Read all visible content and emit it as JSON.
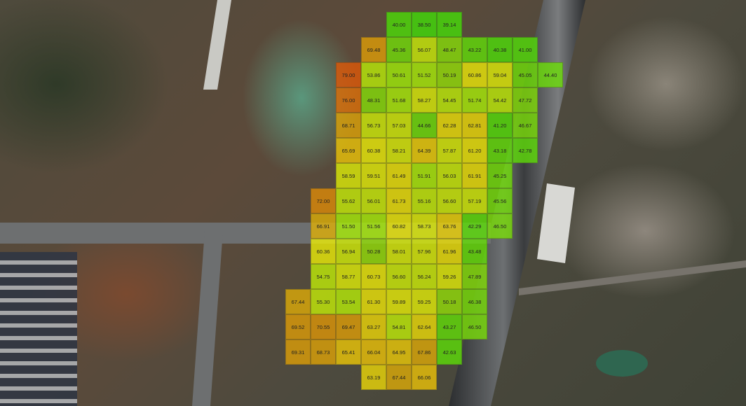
{
  "chart_data": {
    "type": "heatmap",
    "color_scale": {
      "low": "#3fd400",
      "mid": "#d8d800",
      "high": "#e06a10"
    },
    "opacity": 0.78,
    "rows": [
      {
        "start_col": 4,
        "values": [
          40.0,
          38.5,
          39.14
        ]
      },
      {
        "start_col": 3,
        "values": [
          69.48,
          45.36,
          56.07,
          48.47,
          43.22,
          40.38,
          41.0
        ]
      },
      {
        "start_col": 2,
        "values": [
          79.0,
          53.86,
          50.61,
          51.52,
          50.19,
          60.86,
          59.04,
          45.05,
          44.4
        ]
      },
      {
        "start_col": 2,
        "values": [
          76.0,
          48.31,
          51.68,
          58.27,
          54.45,
          51.74,
          54.42,
          47.72
        ]
      },
      {
        "start_col": 2,
        "values": [
          68.71,
          56.73,
          57.03,
          44.66,
          62.28,
          62.81,
          41.2,
          46.67
        ]
      },
      {
        "start_col": 2,
        "values": [
          65.69,
          60.38,
          58.21,
          64.39,
          57.87,
          61.2,
          43.18,
          42.78
        ]
      },
      {
        "start_col": 2,
        "values": [
          58.59,
          59.51,
          61.49,
          51.91,
          56.03,
          61.91,
          45.25
        ]
      },
      {
        "start_col": 1,
        "values": [
          72.0,
          55.62,
          56.01,
          61.73,
          55.16,
          56.6,
          57.19,
          45.56
        ]
      },
      {
        "start_col": 1,
        "values": [
          66.91,
          51.5,
          51.56,
          60.82,
          58.73,
          63.76,
          42.29,
          46.5
        ]
      },
      {
        "start_col": 1,
        "values": [
          60.36,
          56.94,
          50.28,
          58.01,
          57.96,
          61.96,
          43.48
        ]
      },
      {
        "start_col": 1,
        "values": [
          54.75,
          58.77,
          60.73,
          56.6,
          56.24,
          59.26,
          47.89
        ]
      },
      {
        "start_col": 0,
        "values": [
          67.44,
          55.3,
          53.54,
          61.3,
          59.89,
          59.25,
          50.18,
          46.38
        ]
      },
      {
        "start_col": 0,
        "values": [
          69.52,
          70.55,
          69.47,
          63.27,
          54.81,
          62.64,
          43.27,
          46.5
        ]
      },
      {
        "start_col": 0,
        "values": [
          69.31,
          68.73,
          65.41,
          66.04,
          64.95,
          67.86,
          42.63
        ]
      },
      {
        "start_col": 3,
        "values": [
          63.19,
          67.44,
          66.06
        ]
      }
    ]
  }
}
